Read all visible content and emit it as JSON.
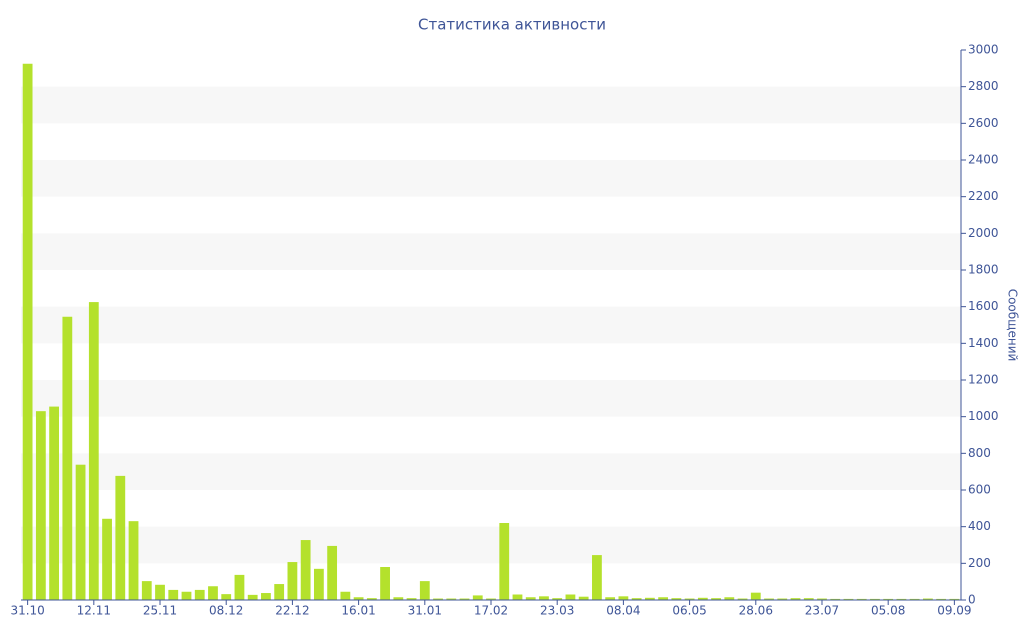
{
  "chart_data": {
    "type": "bar",
    "title": "Статистика активности",
    "y_label": "Сообщений",
    "categories": [
      "31.10",
      null,
      null,
      null,
      null,
      "12.11",
      null,
      null,
      null,
      null,
      "25.11",
      null,
      null,
      null,
      null,
      "08.12",
      null,
      null,
      null,
      null,
      "22.12",
      null,
      null,
      null,
      null,
      "16.01",
      null,
      null,
      null,
      null,
      "31.01",
      null,
      null,
      null,
      null,
      "17.02",
      null,
      null,
      null,
      null,
      "23.03",
      null,
      null,
      null,
      null,
      "08.04",
      null,
      null,
      null,
      null,
      "06.05",
      null,
      null,
      null,
      null,
      "28.06",
      null,
      null,
      null,
      null,
      "23.07",
      null,
      null,
      null,
      null,
      "05.08",
      null,
      null,
      null,
      null,
      "09.09"
    ],
    "values": [
      2925,
      1030,
      1055,
      1545,
      738,
      1625,
      443,
      677,
      430,
      103,
      83,
      55,
      45,
      55,
      75,
      32,
      137,
      28,
      38,
      87,
      207,
      327,
      170,
      295,
      45,
      15,
      10,
      180,
      15,
      10,
      103,
      8,
      8,
      8,
      25,
      8,
      420,
      30,
      15,
      20,
      10,
      30,
      18,
      245,
      15,
      20,
      10,
      12,
      15,
      10,
      8,
      12,
      10,
      15,
      8,
      40,
      8,
      8,
      10,
      10,
      8,
      6,
      6,
      6,
      6,
      6,
      6,
      6,
      8,
      6,
      6
    ],
    "color": "#b4e12c",
    "ylim": [
      0,
      3000
    ],
    "yticks": [
      0,
      200,
      400,
      600,
      800,
      1000,
      1200,
      1400,
      1600,
      1800,
      2000,
      2200,
      2400,
      2600,
      2800,
      3000
    ],
    "grid": "alternating-bands",
    "y_axis_side": "right"
  }
}
